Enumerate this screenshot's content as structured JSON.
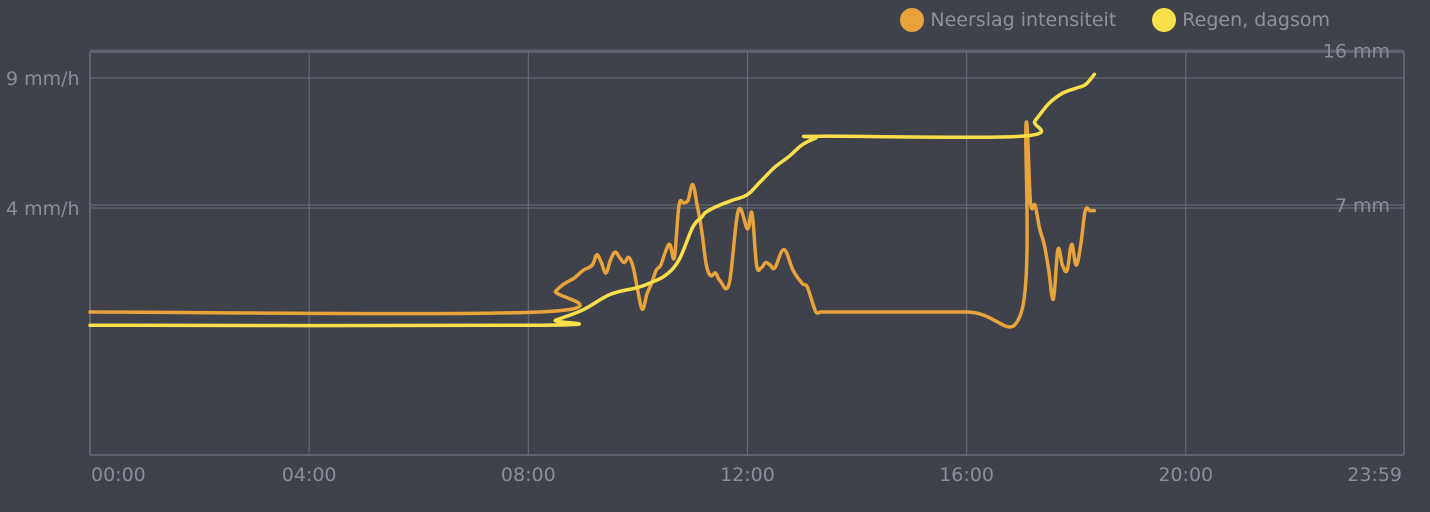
{
  "legend": [
    {
      "label": "Neerslag intensiteit",
      "color": "#e8a33a"
    },
    {
      "label": "Regen, dagsom",
      "color": "#f9e04a"
    }
  ],
  "chart_data": {
    "type": "line",
    "x_ticks": [
      "00:00",
      "04:00",
      "08:00",
      "12:00",
      "16:00",
      "20:00",
      "23:59"
    ],
    "y_left_ticks": [
      {
        "value": 9,
        "label": "9 mm/h"
      },
      {
        "value": 4,
        "label": "4 mm/h"
      }
    ],
    "y_right_ticks": [
      {
        "value": 16,
        "label": "16 mm"
      },
      {
        "value": 7,
        "label": "7 mm"
      }
    ],
    "y_left_range": [
      -5.5,
      10
    ],
    "y_right_range": [
      -7.55,
      15.9
    ],
    "grid": true,
    "legend_position": "top-right",
    "series": [
      {
        "name": "Neerslag intensiteit",
        "axis": "left",
        "color": "#e8a33a",
        "x": [
          "00:00",
          "08:12",
          "08:30",
          "08:40",
          "08:50",
          "09:00",
          "09:10",
          "09:15",
          "09:20",
          "09:25",
          "09:30",
          "09:35",
          "09:40",
          "09:45",
          "09:50",
          "09:55",
          "10:00",
          "10:05",
          "10:10",
          "10:15",
          "10:20",
          "10:25",
          "10:30",
          "10:35",
          "10:40",
          "10:45",
          "10:50",
          "10:55",
          "11:00",
          "11:05",
          "11:10",
          "11:15",
          "11:20",
          "11:25",
          "11:30",
          "11:40",
          "11:50",
          "12:00",
          "12:05",
          "12:10",
          "12:15",
          "12:20",
          "12:25",
          "12:30",
          "12:40",
          "12:50",
          "13:00",
          "13:05",
          "13:10",
          "13:15",
          "13:20",
          "13:25",
          "13:30",
          "13:40",
          "16:00",
          "17:00",
          "17:05",
          "17:10",
          "17:15",
          "17:20",
          "17:25",
          "17:30",
          "17:35",
          "17:40",
          "17:45",
          "17:50",
          "17:55",
          "18:00",
          "18:05",
          "18:10",
          "18:15",
          "18:20"
        ],
        "y": [
          0,
          0,
          0.8,
          1.1,
          1.3,
          1.6,
          1.8,
          2.2,
          1.9,
          1.5,
          2.0,
          2.3,
          2.1,
          1.9,
          2.1,
          1.7,
          0.8,
          0.1,
          0.7,
          1.1,
          1.6,
          1.8,
          2.3,
          2.6,
          2.1,
          4.1,
          4.2,
          4.3,
          4.9,
          4.1,
          3.1,
          1.8,
          1.4,
          1.5,
          1.2,
          1.1,
          3.9,
          3.2,
          3.8,
          1.8,
          1.7,
          1.9,
          1.8,
          1.7,
          2.4,
          1.6,
          1.1,
          1.0,
          0.5,
          0,
          0,
          0,
          0,
          0,
          0,
          0,
          7.2,
          4.2,
          4.1,
          3.2,
          2.6,
          1.6,
          0.5,
          2.4,
          1.8,
          1.6,
          2.6,
          1.8,
          2.6,
          3.9,
          3.9,
          3.9
        ]
      },
      {
        "name": "Regen, dagsom",
        "axis": "right",
        "color": "#f9e04a",
        "x": [
          "00:00",
          "08:12",
          "08:30",
          "09:00",
          "09:30",
          "10:00",
          "10:15",
          "10:30",
          "10:45",
          "11:00",
          "11:10",
          "11:15",
          "11:30",
          "11:45",
          "12:00",
          "12:15",
          "12:30",
          "12:45",
          "13:00",
          "13:15",
          "13:20",
          "17:00",
          "17:15",
          "17:30",
          "17:45",
          "18:00",
          "18:10",
          "18:20"
        ],
        "y": [
          0,
          0,
          0.3,
          0.9,
          1.8,
          2.2,
          2.5,
          2.9,
          3.8,
          5.7,
          6.3,
          6.6,
          7.0,
          7.3,
          7.6,
          8.4,
          9.2,
          9.8,
          10.5,
          10.9,
          11.0,
          11.0,
          11.9,
          12.9,
          13.5,
          13.8,
          14.0,
          14.6
        ]
      }
    ]
  }
}
